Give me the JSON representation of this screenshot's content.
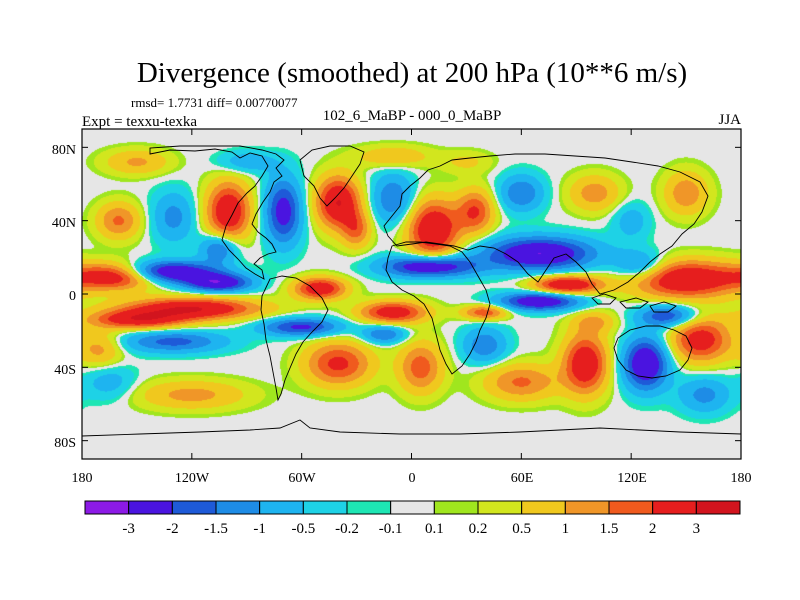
{
  "title": "Divergence (smoothed) at 200 hPa (10**6 m/s)",
  "stats": "rmsd= 1.7731 diff= 0.00770077",
  "left_label": "Expt = texxu-texka",
  "center_label": "102_6_MaBP - 000_0_MaBP",
  "right_label": "JJA",
  "x_ticks": [
    "180",
    "120W",
    "60W",
    "0",
    "60E",
    "120E",
    "180"
  ],
  "y_ticks": [
    "80N",
    "40N",
    "0",
    "40S",
    "80S"
  ],
  "colorbar": {
    "labels": [
      "-3",
      "-2",
      "-1.5",
      "-1",
      "-0.5",
      "-0.2",
      "-0.1",
      "0.1",
      "0.2",
      "0.5",
      "1",
      "1.5",
      "2",
      "3"
    ],
    "colors": [
      "#8c1ae6",
      "#4a14e0",
      "#1e5ad8",
      "#1e8ce6",
      "#1eb4f0",
      "#1ed2e6",
      "#1ee6b4",
      "#e6e6e6",
      "#a0e61e",
      "#d2e61e",
      "#f0c81e",
      "#f09628",
      "#f05a1e",
      "#e61e1e",
      "#d2141e"
    ]
  },
  "map_data": {
    "type": "contour-fill",
    "variable": "Divergence (smoothed) at 200 hPa",
    "units": "10**6 m/s",
    "lon_range": [
      -180,
      180
    ],
    "lat_range": [
      -90,
      90
    ],
    "blobs": [
      {
        "lon": -160,
        "lat": 10,
        "rx": 22,
        "ry": 7,
        "v": 3.2
      },
      {
        "lon": -135,
        "lat": 12,
        "rx": 28,
        "ry": 6,
        "v": -3.2
      },
      {
        "lon": -105,
        "lat": 6,
        "rx": 18,
        "ry": 5,
        "v": -2.6
      },
      {
        "lon": -120,
        "lat": -8,
        "rx": 36,
        "ry": 6,
        "v": 3.0
      },
      {
        "lon": -150,
        "lat": -14,
        "rx": 25,
        "ry": 5,
        "v": 2.5
      },
      {
        "lon": -130,
        "lat": -26,
        "rx": 28,
        "ry": 6,
        "v": -1.7
      },
      {
        "lon": -160,
        "lat": 40,
        "rx": 12,
        "ry": 10,
        "v": 1.6
      },
      {
        "lon": -130,
        "lat": 42,
        "rx": 12,
        "ry": 14,
        "v": -1.2
      },
      {
        "lon": -100,
        "lat": 45,
        "rx": 12,
        "ry": 16,
        "v": 2.8
      },
      {
        "lon": -105,
        "lat": 25,
        "rx": 10,
        "ry": 8,
        "v": -1.8
      },
      {
        "lon": -70,
        "lat": 45,
        "rx": 10,
        "ry": 18,
        "v": -2.4
      },
      {
        "lon": -40,
        "lat": 50,
        "rx": 12,
        "ry": 14,
        "v": 3.0
      },
      {
        "lon": -30,
        "lat": 35,
        "rx": 8,
        "ry": 10,
        "v": 1.5
      },
      {
        "lon": -10,
        "lat": 52,
        "rx": 12,
        "ry": 14,
        "v": -1.5
      },
      {
        "lon": 12,
        "lat": 35,
        "rx": 14,
        "ry": 16,
        "v": 3.0
      },
      {
        "lon": 35,
        "lat": 45,
        "rx": 10,
        "ry": 12,
        "v": 2.0
      },
      {
        "lon": 10,
        "lat": 15,
        "rx": 25,
        "ry": 6,
        "v": -3.0
      },
      {
        "lon": 70,
        "lat": 22,
        "rx": 30,
        "ry": 9,
        "v": -3.0
      },
      {
        "lon": 85,
        "lat": 5,
        "rx": 18,
        "ry": 5,
        "v": 3.0
      },
      {
        "lon": 70,
        "lat": -4,
        "rx": 22,
        "ry": 5,
        "v": -2.8
      },
      {
        "lon": 150,
        "lat": 8,
        "rx": 30,
        "ry": 10,
        "v": 3.0
      },
      {
        "lon": 125,
        "lat": 15,
        "rx": 14,
        "ry": 8,
        "v": -1.5
      },
      {
        "lon": -50,
        "lat": 3,
        "rx": 14,
        "ry": 6,
        "v": 2.7
      },
      {
        "lon": -10,
        "lat": -10,
        "rx": 18,
        "ry": 6,
        "v": 2.6
      },
      {
        "lon": 40,
        "lat": -10,
        "rx": 12,
        "ry": 4,
        "v": 2.0
      },
      {
        "lon": -60,
        "lat": -18,
        "rx": 22,
        "ry": 5,
        "v": -2.2
      },
      {
        "lon": -15,
        "lat": -22,
        "rx": 12,
        "ry": 5,
        "v": -1.6
      },
      {
        "lon": -40,
        "lat": -38,
        "rx": 18,
        "ry": 12,
        "v": 2.2
      },
      {
        "lon": 5,
        "lat": -40,
        "rx": 12,
        "ry": 14,
        "v": 1.8
      },
      {
        "lon": 40,
        "lat": -28,
        "rx": 12,
        "ry": 10,
        "v": -1.4
      },
      {
        "lon": 60,
        "lat": -48,
        "rx": 20,
        "ry": 10,
        "v": 1.6
      },
      {
        "lon": 95,
        "lat": -38,
        "rx": 12,
        "ry": 16,
        "v": 2.8
      },
      {
        "lon": 128,
        "lat": -38,
        "rx": 12,
        "ry": 14,
        "v": -3.0
      },
      {
        "lon": 158,
        "lat": -25,
        "rx": 16,
        "ry": 12,
        "v": 2.5
      },
      {
        "lon": 160,
        "lat": -55,
        "rx": 14,
        "ry": 10,
        "v": -1.2
      },
      {
        "lon": -120,
        "lat": -55,
        "rx": 30,
        "ry": 8,
        "v": 1.2
      },
      {
        "lon": -165,
        "lat": -48,
        "rx": 14,
        "ry": 10,
        "v": -0.8
      },
      {
        "lon": 60,
        "lat": 55,
        "rx": 12,
        "ry": 10,
        "v": -1.5
      },
      {
        "lon": 100,
        "lat": 55,
        "rx": 14,
        "ry": 10,
        "v": 1.3
      },
      {
        "lon": 150,
        "lat": 55,
        "rx": 12,
        "ry": 12,
        "v": 1.4
      },
      {
        "lon": 120,
        "lat": 40,
        "rx": 10,
        "ry": 10,
        "v": -0.8
      },
      {
        "lon": -150,
        "lat": 72,
        "rx": 18,
        "ry": 7,
        "v": 1.1
      },
      {
        "lon": -10,
        "lat": 75,
        "rx": 20,
        "ry": 6,
        "v": 1.0
      },
      {
        "lon": -90,
        "lat": 72,
        "rx": 16,
        "ry": 6,
        "v": -0.9
      },
      {
        "lon": 30,
        "lat": 72,
        "rx": 14,
        "ry": 6,
        "v": 0.6
      },
      {
        "lon": 140,
        "lat": -12,
        "rx": 16,
        "ry": 6,
        "v": -2.0
      },
      {
        "lon": -170,
        "lat": -30,
        "rx": 12,
        "ry": 10,
        "v": 1.2
      },
      {
        "lon": 100,
        "lat": -15,
        "rx": 12,
        "ry": 6,
        "v": 1.0
      }
    ]
  }
}
